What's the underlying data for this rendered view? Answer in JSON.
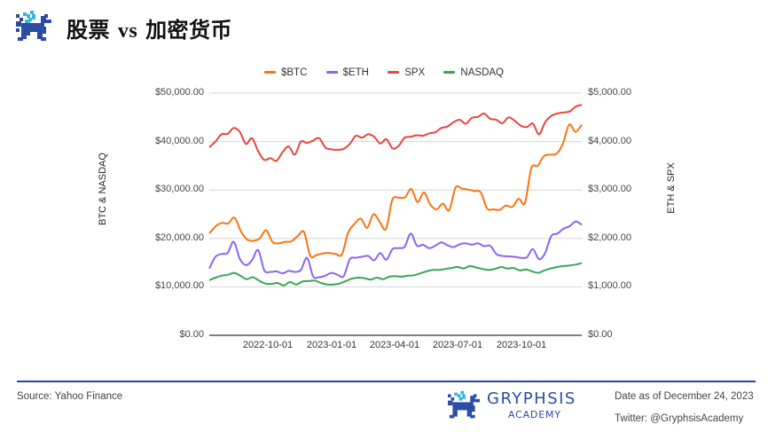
{
  "header": {
    "title_part1": "股票",
    "title_vs": "vs",
    "title_part2": "加密货币"
  },
  "footer": {
    "source": "Source: Yahoo Finance",
    "brand_name": "GRYPHSIS",
    "brand_sub": "ACADEMY",
    "date": "Date as of December 24, 2023",
    "twitter": "Twitter: @GryphsisAcademy"
  },
  "colors": {
    "btc": "#fa7412",
    "eth": "#8b64f4",
    "spx": "#e8453c",
    "nasdaq": "#3aa655",
    "separator": "#2747a0",
    "brand": "#2c4da3"
  },
  "chart_data": {
    "type": "line",
    "title": "股票 vs 加密货币",
    "xlabel": "",
    "ylabel_left": "BTC & NASDAQ",
    "ylabel_right": "ETH & SPX",
    "ylim_left": [
      0,
      50000
    ],
    "ylim_right": [
      0,
      5000
    ],
    "grid": true,
    "legend_position": "top",
    "left_ticks": [
      "$0.00",
      "$10,000.00",
      "$20,000.00",
      "$30,000.00",
      "$40,000.00",
      "$50,000.00"
    ],
    "right_ticks": [
      "$0.00",
      "$1,000.00",
      "$2,000.00",
      "$3,000.00",
      "$4,000.00",
      "$5,000.00"
    ],
    "x_ticks": [
      "2022-10-01",
      "2023-01-01",
      "2023-04-01",
      "2023-07-01",
      "2023-10-01"
    ],
    "x_range": [
      "2022-07-10",
      "2023-12-24"
    ],
    "series": [
      {
        "name": "$BTC",
        "axis": "left",
        "values": [
          21000,
          22500,
          23200,
          23100,
          24300,
          21500,
          19800,
          19500,
          20000,
          21700,
          19300,
          19000,
          19300,
          19400,
          20500,
          21300,
          16400,
          16600,
          16900,
          17000,
          16800,
          16700,
          21200,
          23000,
          24100,
          22200,
          25000,
          23400,
          22000,
          28000,
          28400,
          28500,
          30200,
          27500,
          29500,
          27000,
          26000,
          27200,
          25800,
          30500,
          30300,
          30100,
          29800,
          29500,
          26200,
          26000,
          25900,
          26800,
          26500,
          28200,
          27300,
          34500,
          35000,
          37000,
          37300,
          37500,
          39500,
          43500,
          42000,
          43500
        ],
        "ticks_to": [
          "2022-07-10",
          "2023-12-24"
        ]
      },
      {
        "name": "$ETH",
        "axis": "right",
        "values": [
          1380,
          1620,
          1680,
          1700,
          1930,
          1580,
          1450,
          1550,
          1760,
          1340,
          1310,
          1320,
          1280,
          1330,
          1310,
          1350,
          1600,
          1220,
          1200,
          1230,
          1290,
          1250,
          1220,
          1570,
          1600,
          1620,
          1640,
          1550,
          1700,
          1560,
          1780,
          1800,
          1830,
          2100,
          1850,
          1870,
          1800,
          1850,
          1920,
          1860,
          1820,
          1880,
          1900,
          1870,
          1900,
          1840,
          1850,
          1680,
          1640,
          1630,
          1620,
          1600,
          1610,
          1780,
          1570,
          1700,
          2050,
          2100,
          2200,
          2250,
          2350,
          2280
        ]
      },
      {
        "name": "SPX",
        "axis": "right",
        "values": [
          3880,
          4000,
          4150,
          4160,
          4280,
          4200,
          3950,
          4070,
          3800,
          3620,
          3660,
          3600,
          3780,
          3900,
          3730,
          4000,
          3970,
          4020,
          4070,
          3880,
          3840,
          3830,
          3850,
          3950,
          4120,
          4080,
          4150,
          4100,
          3960,
          4050,
          3860,
          3910,
          4080,
          4100,
          4130,
          4120,
          4170,
          4190,
          4280,
          4310,
          4400,
          4450,
          4370,
          4490,
          4510,
          4580,
          4470,
          4450,
          4380,
          4500,
          4430,
          4330,
          4300,
          4370,
          4150,
          4400,
          4530,
          4580,
          4600,
          4620,
          4720,
          4760
        ]
      },
      {
        "name": "NASDAQ",
        "axis": "left",
        "values": [
          11400,
          11900,
          12300,
          12500,
          12900,
          12300,
          11600,
          12000,
          11300,
          10700,
          10600,
          10800,
          10300,
          11000,
          10500,
          11100,
          11200,
          11300,
          10800,
          10500,
          10500,
          10700,
          11200,
          11700,
          11900,
          11800,
          11500,
          11900,
          11600,
          12100,
          12200,
          12100,
          12300,
          12400,
          12800,
          13200,
          13500,
          13500,
          13700,
          13900,
          14100,
          13800,
          14300,
          14000,
          13700,
          13500,
          13700,
          14100,
          13800,
          13900,
          13400,
          13600,
          13200,
          12900,
          13400,
          13800,
          14100,
          14300,
          14400,
          14600,
          14900
        ]
      }
    ]
  }
}
